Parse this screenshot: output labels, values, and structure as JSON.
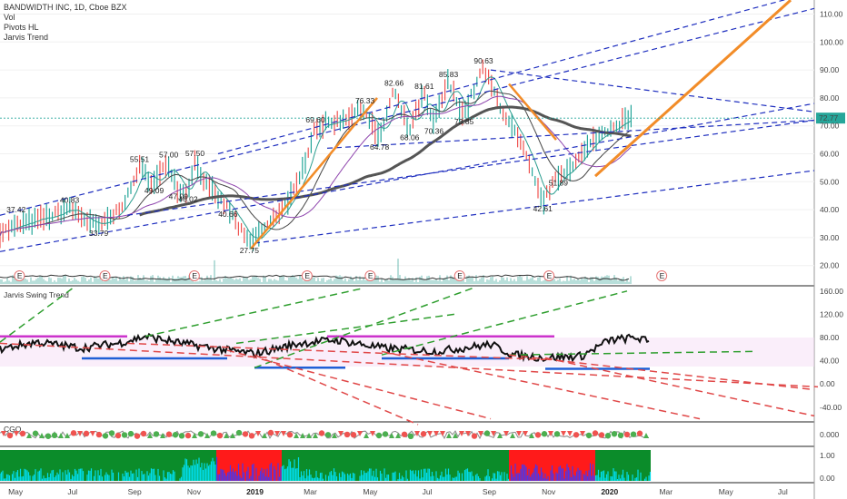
{
  "legend": {
    "title": "BANDWIDTH INC, 1D, Cboe BZX",
    "items": [
      "Vol",
      "Pivots HL",
      "Jarvis Trend"
    ]
  },
  "price_badge": "72.77",
  "colors": {
    "background": "#ffffff",
    "price_line": "#1a1a1a",
    "ma_fast": "#2a9d8f",
    "ma_mid": "#444444",
    "ma_slow": "#8e44ad",
    "ma_200": "#555555",
    "trend_dashed": "#1f2fbf",
    "orange_trend": "#f28c28",
    "volume": "#2a9d8f",
    "swing_line": "#111111",
    "swing_magenta": "#cc33cc",
    "swing_blue": "#1f5fd6",
    "swing_green_dash": "#2e9e2e",
    "swing_red_dash": "#e04848",
    "cgo_green": "#4caf50",
    "cgo_red": "#ef5350",
    "hist_green": "#0b8c2a",
    "hist_red": "#ff1a1a",
    "hist_cyan": "#00e5ff",
    "hist_blue": "#3a3aff",
    "badge_bg": "#26a69a",
    "earnings_marker": "#e57373"
  },
  "panes": {
    "price": {
      "title": "",
      "ticks": [
        "110.00",
        "100.00",
        "90.00",
        "80.00",
        "70.00",
        "60.00",
        "50.00",
        "40.00",
        "30.00",
        "20.00"
      ]
    },
    "jarvis": {
      "title": "Jarvis Swing Trend",
      "ticks": [
        "160.00",
        "120.00",
        "80.00",
        "40.00",
        "0.00",
        "-40.00"
      ]
    },
    "cgo": {
      "title": "CGO",
      "ticks": [
        "0.000"
      ]
    },
    "hist": {
      "title": "",
      "ticks": [
        "1.00",
        "0.00"
      ]
    }
  },
  "x_axis": {
    "labels": [
      "May",
      "Jul",
      "Sep",
      "Nov",
      "2019",
      "Mar",
      "May",
      "Jul",
      "Sep",
      "Nov",
      "2020",
      "Mar",
      "May",
      "Jul"
    ],
    "bold": [
      "2019",
      "2020"
    ]
  },
  "earnings_label": "E",
  "chart_data": {
    "type": "line",
    "title": "BANDWIDTH INC, 1D, Cboe BZX",
    "xlabel": "",
    "ylabel": "",
    "ylim": [
      15,
      115
    ],
    "x_range": [
      "2018-04-15",
      "2020-07-31"
    ],
    "series": [
      {
        "name": "",
        "points": [
          [
            "2018-04-15",
            32
          ],
          [
            "2018-05-10",
            35
          ],
          [
            "2018-06-10",
            38
          ],
          [
            "2018-06-25",
            40.83
          ],
          [
            "2018-07-10",
            37
          ],
          [
            "2018-07-25",
            33.79
          ],
          [
            "2018-08-10",
            38
          ],
          [
            "2018-08-25",
            45
          ],
          [
            "2018-09-05",
            55.51
          ],
          [
            "2018-09-20",
            49.09
          ],
          [
            "2018-10-05",
            57
          ],
          [
            "2018-10-15",
            47.09
          ],
          [
            "2018-10-25",
            46.02
          ],
          [
            "2018-11-01",
            57.5
          ],
          [
            "2018-11-15",
            48
          ],
          [
            "2018-12-05",
            40.66
          ],
          [
            "2018-12-27",
            27.75
          ],
          [
            "2019-01-20",
            36
          ],
          [
            "2019-02-15",
            48
          ],
          [
            "2019-03-05",
            69.6
          ],
          [
            "2019-04-01",
            72
          ],
          [
            "2019-04-25",
            76.33
          ],
          [
            "2019-05-10",
            64.78
          ],
          [
            "2019-05-25",
            82.66
          ],
          [
            "2019-06-10",
            68.06
          ],
          [
            "2019-06-25",
            81.61
          ],
          [
            "2019-07-05",
            70.36
          ],
          [
            "2019-07-20",
            85.83
          ],
          [
            "2019-08-05",
            73.85
          ],
          [
            "2019-08-25",
            90.63
          ],
          [
            "2019-09-15",
            75
          ],
          [
            "2019-10-05",
            62
          ],
          [
            "2019-10-25",
            42.61
          ],
          [
            "2019-11-10",
            51.89
          ],
          [
            "2019-12-01",
            58
          ],
          [
            "2019-12-20",
            66
          ],
          [
            "2020-01-10",
            71
          ],
          [
            "2020-01-25",
            72.77
          ]
        ]
      }
    ],
    "pivot_labels": [
      {
        "date": "2018-05-01",
        "value": 37.42
      },
      {
        "date": "2018-06-25",
        "value": 40.83
      },
      {
        "date": "2018-07-25",
        "value": 33.79
      },
      {
        "date": "2018-09-05",
        "value": 55.51
      },
      {
        "date": "2018-09-20",
        "value": 49.09
      },
      {
        "date": "2018-10-05",
        "value": 57.0
      },
      {
        "date": "2018-10-15",
        "value": 47.09
      },
      {
        "date": "2018-10-25",
        "value": 46.02
      },
      {
        "date": "2018-11-01",
        "value": 57.5
      },
      {
        "date": "2018-12-05",
        "value": 40.66
      },
      {
        "date": "2018-12-27",
        "value": 27.75
      },
      {
        "date": "2019-03-05",
        "value": 69.6
      },
      {
        "date": "2019-04-25",
        "value": 76.33
      },
      {
        "date": "2019-05-10",
        "value": 64.78
      },
      {
        "date": "2019-05-25",
        "value": 82.66
      },
      {
        "date": "2019-06-10",
        "value": 68.06
      },
      {
        "date": "2019-06-25",
        "value": 81.61
      },
      {
        "date": "2019-07-05",
        "value": 70.36
      },
      {
        "date": "2019-07-20",
        "value": 85.83
      },
      {
        "date": "2019-08-05",
        "value": 73.85
      },
      {
        "date": "2019-08-25",
        "value": 90.63
      },
      {
        "date": "2019-10-25",
        "value": 42.61
      },
      {
        "date": "2019-11-10",
        "value": 51.89
      }
    ],
    "pivot_label_texts": [
      "37.42",
      "40.83",
      "33.79",
      "55.51",
      "49.09",
      "57.00",
      "47.09",
      "46.02",
      "57.50",
      "40.66",
      "27.75",
      "69.60",
      "76.33",
      "64.78",
      "82.66",
      "68.06",
      "81.61",
      "70.36",
      "85.83",
      "73.85",
      "90.63",
      "42.61",
      "51.89"
    ],
    "earnings_dates": [
      "2018-05-05",
      "2018-08-01",
      "2018-11-01",
      "2019-02-25",
      "2019-05-01",
      "2019-08-01",
      "2019-11-01",
      "2020-02-25"
    ],
    "grid": true,
    "legend_placement": "top-left"
  }
}
